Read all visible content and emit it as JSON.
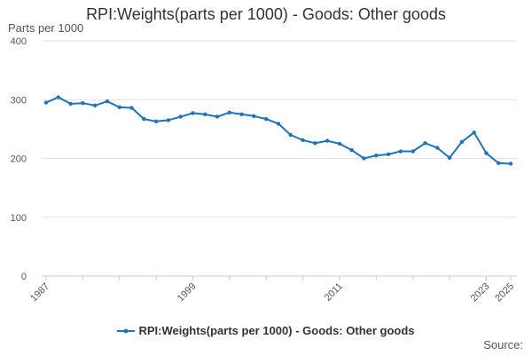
{
  "chart_data": {
    "type": "line",
    "title": "RPI:Weights(parts per 1000) - Goods: Other goods",
    "y_unit_label": "Parts per 1000",
    "xlabel": "",
    "ylabel": "",
    "ylim": [
      0,
      400
    ],
    "yticks": [
      0,
      100,
      200,
      300,
      400
    ],
    "xlim": [
      1987,
      2025
    ],
    "xticks": [
      1987,
      1999,
      2011,
      2023,
      2025
    ],
    "grid": true,
    "legend_position": "bottom",
    "color": "#1b75bc",
    "series": [
      {
        "name": "RPI:Weights(parts per 1000) - Goods: Other goods",
        "x": [
          1987,
          1988,
          1989,
          1990,
          1991,
          1992,
          1993,
          1994,
          1995,
          1996,
          1997,
          1998,
          1999,
          2000,
          2001,
          2002,
          2003,
          2004,
          2005,
          2006,
          2007,
          2008,
          2009,
          2010,
          2011,
          2012,
          2013,
          2014,
          2015,
          2016,
          2017,
          2018,
          2019,
          2020,
          2021,
          2022,
          2023,
          2024,
          2025
        ],
        "values": [
          295,
          304,
          293,
          294,
          290,
          297,
          287,
          286,
          267,
          263,
          265,
          271,
          277,
          275,
          271,
          278,
          275,
          272,
          267,
          259,
          240,
          231,
          226,
          230,
          225,
          214,
          200,
          205,
          207,
          212,
          212,
          226,
          218,
          201,
          228,
          244,
          209,
          192,
          191
        ]
      }
    ]
  },
  "source_label": "Source:"
}
